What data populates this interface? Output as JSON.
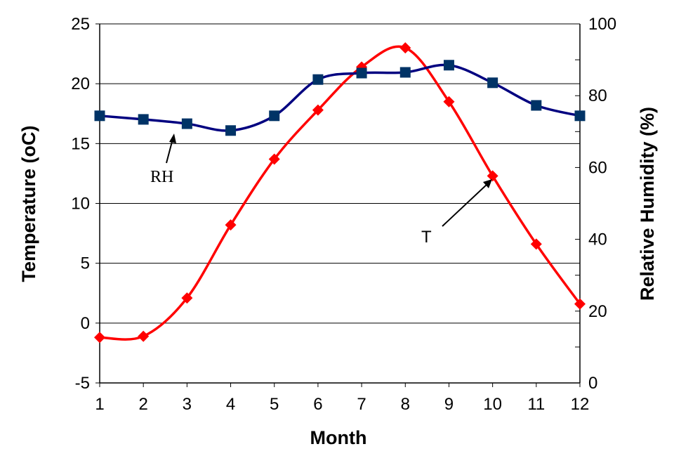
{
  "chart_data": {
    "type": "line",
    "title": "",
    "xlabel": "Month",
    "ylabel": "Temperature (oC)",
    "y2label": "Relative Humidity (%)",
    "x": [
      1,
      2,
      3,
      4,
      5,
      6,
      7,
      8,
      9,
      10,
      11,
      12
    ],
    "xlim": [
      1,
      12
    ],
    "ylim": [
      -5,
      25
    ],
    "y2lim": [
      0,
      100
    ],
    "xticks": [
      "1",
      "2",
      "3",
      "4",
      "5",
      "6",
      "7",
      "8",
      "9",
      "10",
      "11",
      "12"
    ],
    "yticks": [
      "-5",
      "0",
      "5",
      "10",
      "15",
      "20",
      "25"
    ],
    "y2ticks": [
      "0",
      "20",
      "40",
      "60",
      "80",
      "100"
    ],
    "grid": true,
    "series": [
      {
        "name": "T",
        "axis": "left",
        "color": "#ff0000",
        "marker": "diamond",
        "values": [
          -1.2,
          -1.1,
          2.1,
          8.2,
          13.7,
          17.8,
          21.4,
          23.0,
          18.5,
          12.3,
          6.6,
          1.6
        ]
      },
      {
        "name": "RH",
        "axis": "right",
        "color": "#000080",
        "marker": "square",
        "values": [
          74.4,
          73.4,
          72.2,
          70.3,
          74.4,
          84.5,
          86.3,
          86.5,
          88.5,
          83.6,
          77.3,
          74.4
        ]
      }
    ],
    "annotations": [
      {
        "text": "RH",
        "series": "RH"
      },
      {
        "text": "T",
        "series": "T"
      }
    ]
  }
}
